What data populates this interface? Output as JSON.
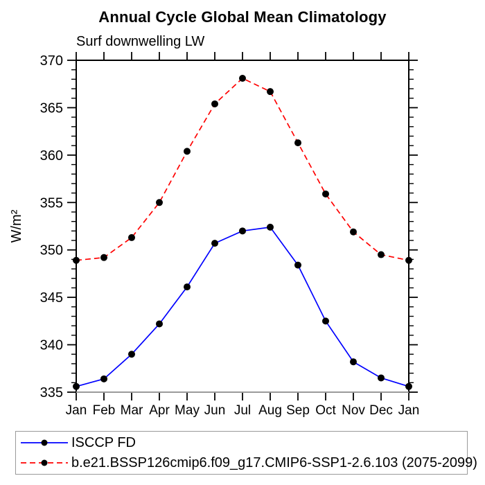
{
  "chart_data": {
    "type": "line",
    "title": "Annual Cycle Global Mean Climatology",
    "subtitle": "Surf downwelling LW",
    "ylabel": "W/m²",
    "categories": [
      "Jan",
      "Feb",
      "Mar",
      "Apr",
      "May",
      "Jun",
      "Jul",
      "Aug",
      "Sep",
      "Oct",
      "Nov",
      "Dec",
      "Jan"
    ],
    "ylim": [
      335,
      370
    ],
    "ytick_major_step": 5,
    "ytick_minor_step": 1,
    "grid": false,
    "legend_position": "bottom-left",
    "axis_color": "#000000",
    "bottom_axis_color": "#9a9a9a",
    "marker_color": "#000000",
    "series": [
      {
        "name": "ISCCP FD",
        "color": "#0000ff",
        "style": "solid",
        "values": [
          335.6,
          336.4,
          339.0,
          342.2,
          346.1,
          350.7,
          352.0,
          352.4,
          348.4,
          342.5,
          338.2,
          336.5,
          335.6
        ]
      },
      {
        "name": "b.e21.BSSP126cmip6.f09_g17.CMIP6-SSP1-2.6.103 (2075-2099)",
        "color": "#ff0000",
        "style": "dashed",
        "dasharray": "8 5",
        "values": [
          348.9,
          349.2,
          351.3,
          355.0,
          360.4,
          365.4,
          368.1,
          366.7,
          361.3,
          355.9,
          351.9,
          349.5,
          348.9
        ]
      }
    ]
  }
}
